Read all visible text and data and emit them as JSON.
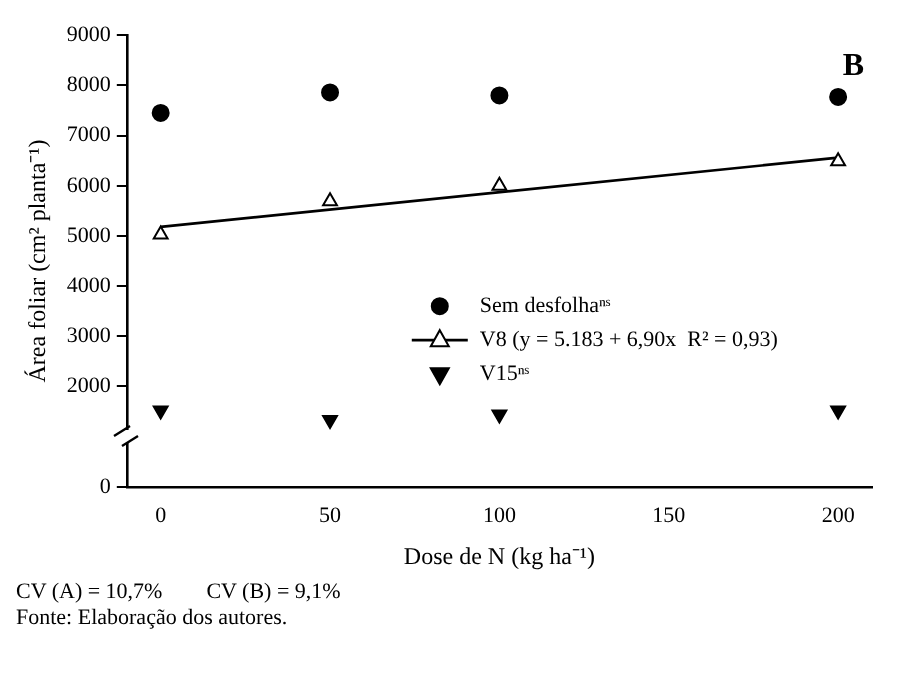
{
  "chart_data": {
    "type": "scatter",
    "title": "B",
    "xlabel": "Dose de N (kg ha⁻¹)",
    "ylabel": "Área foliar (cm² planta⁻¹)",
    "x": [
      0,
      50,
      100,
      200
    ],
    "series": [
      {
        "name": "Sem desfolhaⁿˢ",
        "color": "#000000",
        "marker": "circle",
        "values": [
          7450,
          7860,
          7800,
          7770
        ]
      },
      {
        "name": "V8 (y = 5.183 + 6,90x  R² = 0,93)",
        "color": "#000000",
        "marker": "triangle",
        "values": [
          5030,
          5690,
          6000,
          6490
        ]
      },
      {
        "name": "V15ⁿˢ",
        "color": "#000000",
        "marker": "triangle-down",
        "values": [
          1520,
          1330,
          1440,
          1520
        ]
      },
      {
        "type": "line",
        "color": "#000000",
        "x": [
          0,
          200
        ],
        "values": [
          5180,
          6560
        ],
        "marker": "none"
      }
    ],
    "xlim": [
      -10,
      210
    ],
    "xticks": [
      0,
      50,
      100,
      150,
      200
    ],
    "ylim": [
      0,
      9000
    ],
    "yticks": [
      0,
      2000,
      3000,
      4000,
      5000,
      6000,
      7000,
      8000,
      9000
    ],
    "grid": false,
    "legend": "center",
    "annotations": [
      "CV (A) = 10,7%        CV (B) = 9,1%",
      "Fonte: Elaboração dos autores."
    ]
  }
}
